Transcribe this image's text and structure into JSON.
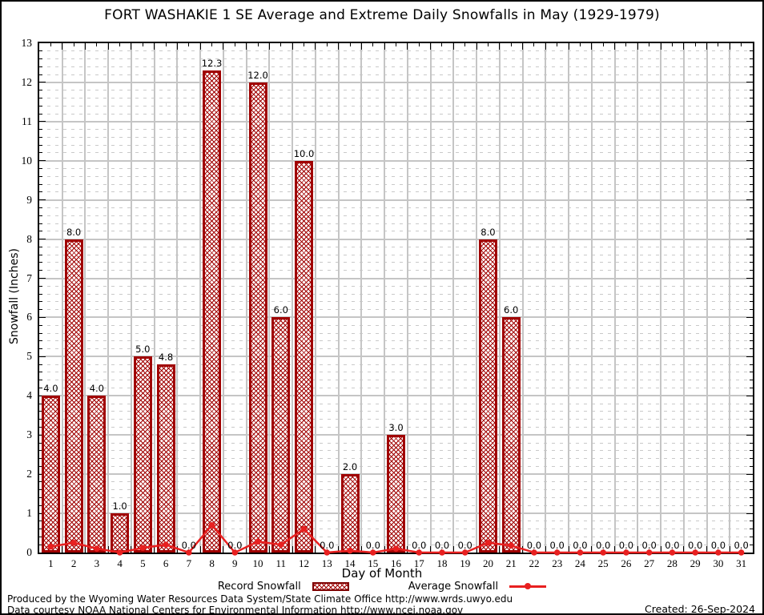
{
  "title": "FORT WASHAKIE 1 SE Average and Extreme Daily Snowfalls in May (1929-1979)",
  "chart_data": {
    "type": "bar",
    "categories": [
      1,
      2,
      3,
      4,
      5,
      6,
      7,
      8,
      9,
      10,
      11,
      12,
      13,
      14,
      15,
      16,
      17,
      18,
      19,
      20,
      21,
      22,
      23,
      24,
      25,
      26,
      27,
      28,
      29,
      30,
      31
    ],
    "series": [
      {
        "name": "Record Snowfall",
        "type": "bar",
        "values": [
          4.0,
          8.0,
          4.0,
          1.0,
          5.0,
          4.8,
          0.0,
          12.3,
          0.0,
          12.0,
          6.0,
          10.0,
          0.0,
          2.0,
          0.0,
          3.0,
          0.0,
          0.0,
          0.0,
          8.0,
          6.0,
          0.0,
          0.0,
          0.0,
          0.0,
          0.0,
          0.0,
          0.0,
          0.0,
          0.0,
          0.0
        ],
        "data_labels": [
          "4.0",
          "8.0",
          "4.0",
          "1.0",
          "5.0",
          "4.8",
          "0.0",
          "12.3",
          "0.0",
          "12.0",
          "6.0",
          "10.0",
          "0.0",
          "2.0",
          "0.0",
          "3.0",
          "0.0",
          "0.0",
          "0.0",
          "8.0",
          "6.0",
          "0.0",
          "0.0",
          "0.0",
          "0.0",
          "0.0",
          "0.0",
          "0.0",
          "0.0",
          "0.0",
          "0.0"
        ]
      },
      {
        "name": "Average Snowfall",
        "type": "line",
        "values": [
          0.15,
          0.25,
          0.1,
          0.0,
          0.12,
          0.2,
          0.0,
          0.7,
          0.0,
          0.28,
          0.2,
          0.6,
          0.0,
          0.05,
          0.0,
          0.1,
          0.0,
          0.0,
          0.0,
          0.25,
          0.18,
          0.0,
          0.0,
          0.0,
          0.0,
          0.0,
          0.0,
          0.0,
          0.0,
          0.0,
          0.0
        ]
      }
    ],
    "title": "FORT WASHAKIE 1 SE Average and Extreme Daily Snowfalls in May (1929-1979)",
    "xlabel": "Day of Month",
    "ylabel": "Snowfall (Inches)",
    "ylim": [
      0,
      13
    ],
    "yticks": [
      0,
      1,
      2,
      3,
      4,
      5,
      6,
      7,
      8,
      9,
      10,
      11,
      12,
      13
    ],
    "grid": "major solid gray, minor dashed gray",
    "legend_position": "bottom",
    "colors": {
      "bar": "#a00000",
      "line": "#e82020",
      "grid_major": "#c5c5c5",
      "grid_minor": "#c9c9c9",
      "frame": "#000000"
    }
  },
  "legend": {
    "record_label": "Record Snowfall",
    "average_label": "Average Snowfall"
  },
  "footer": {
    "line1": "Produced by the Wyoming Water Resources Data System/State Climate Office http://www.wrds.uwyo.edu",
    "line2": "Data courtesy NOAA National Centers for Environmental Information http://www.ncei.noaa.gov",
    "created": "Created: 26-Sep-2024"
  }
}
